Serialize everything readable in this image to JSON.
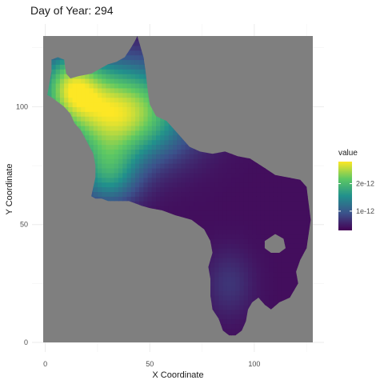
{
  "chart_data": {
    "type": "heatmap",
    "title": "Day of Year: 294",
    "xlabel": "X Coordinate",
    "ylabel": "Y Coordinate",
    "xlim": [
      -1,
      128
    ],
    "ylim": [
      0,
      130
    ],
    "x_ticks": [
      0,
      50,
      100
    ],
    "y_ticks": [
      0,
      50,
      100
    ],
    "background_color": "#7f7f7f",
    "na_region": "grey fill outside the land mask",
    "grid": true,
    "legend": {
      "title": "value",
      "position": "right",
      "tick_labels": [
        "1e-12",
        "2e-12"
      ],
      "tick_values": [
        1e-12,
        2e-12
      ],
      "min": 3e-13,
      "max": 2.8e-12,
      "palette": [
        "#440154",
        "#3b528b",
        "#21908c",
        "#5dc863",
        "#fde725"
      ]
    },
    "region_outline": [
      [
        3,
        120
      ],
      [
        6,
        121
      ],
      [
        9,
        120
      ],
      [
        10,
        114
      ],
      [
        12,
        112
      ],
      [
        16,
        113
      ],
      [
        22,
        114
      ],
      [
        26,
        116
      ],
      [
        30,
        118
      ],
      [
        34,
        119
      ],
      [
        38,
        121
      ],
      [
        41,
        125
      ],
      [
        43,
        128
      ],
      [
        44,
        130
      ],
      [
        45,
        127
      ],
      [
        47,
        121
      ],
      [
        48,
        115
      ],
      [
        49,
        107
      ],
      [
        50,
        101
      ],
      [
        53,
        96
      ],
      [
        58,
        94
      ],
      [
        63,
        89
      ],
      [
        69,
        83
      ],
      [
        74,
        81
      ],
      [
        80,
        80
      ],
      [
        86,
        81
      ],
      [
        92,
        79
      ],
      [
        98,
        78
      ],
      [
        105,
        74
      ],
      [
        110,
        71
      ],
      [
        116,
        70
      ],
      [
        122,
        69
      ],
      [
        125,
        66
      ],
      [
        126,
        59
      ],
      [
        127,
        52
      ],
      [
        126,
        46
      ],
      [
        125,
        40
      ],
      [
        122,
        35
      ],
      [
        120,
        30
      ],
      [
        121,
        25
      ],
      [
        117,
        19
      ],
      [
        112,
        17
      ],
      [
        108,
        14
      ],
      [
        105,
        16
      ],
      [
        102,
        19
      ],
      [
        99,
        17
      ],
      [
        97,
        14
      ],
      [
        96,
        9
      ],
      [
        94,
        5
      ],
      [
        91,
        3
      ],
      [
        88,
        3
      ],
      [
        85,
        5
      ],
      [
        83,
        10
      ],
      [
        80,
        14
      ],
      [
        79,
        20
      ],
      [
        79,
        27
      ],
      [
        78,
        32
      ],
      [
        80,
        38
      ],
      [
        79,
        43
      ],
      [
        76,
        48
      ],
      [
        70,
        52
      ],
      [
        62,
        54
      ],
      [
        56,
        56
      ],
      [
        50,
        57
      ],
      [
        46,
        58
      ],
      [
        40,
        60
      ],
      [
        34,
        60
      ],
      [
        30,
        60
      ],
      [
        27,
        61
      ],
      [
        24,
        61
      ],
      [
        22,
        62
      ],
      [
        23,
        66
      ],
      [
        24,
        70
      ],
      [
        24,
        75
      ],
      [
        23,
        80
      ],
      [
        20,
        85
      ],
      [
        17,
        90
      ],
      [
        14,
        93
      ],
      [
        12,
        97
      ],
      [
        9,
        100
      ],
      [
        6,
        102
      ],
      [
        3,
        104
      ],
      [
        1,
        105
      ],
      [
        2,
        110
      ],
      [
        3,
        115
      ],
      [
        3,
        120
      ]
    ],
    "holes": [
      [
        [
          105,
          43
        ],
        [
          110,
          46
        ],
        [
          114,
          44
        ],
        [
          115,
          40
        ],
        [
          112,
          38
        ],
        [
          108,
          38
        ],
        [
          105,
          40
        ],
        [
          105,
          43
        ]
      ]
    ],
    "value_field": {
      "description": "kernel-smoothed values in data units",
      "base": 4e-13,
      "components": [
        {
          "x": 35,
          "y": 98,
          "amplitude": 2.3e-12,
          "sigma_x": 22,
          "sigma_y": 14
        },
        {
          "x": 12,
          "y": 110,
          "amplitude": 1.4e-12,
          "sigma_x": 10,
          "sigma_y": 10
        },
        {
          "x": 30,
          "y": 72,
          "amplitude": 1.1e-12,
          "sigma_x": 10,
          "sigma_y": 10
        },
        {
          "x": 88,
          "y": 25,
          "amplitude": 3e-13,
          "sigma_x": 8,
          "sigma_y": 10
        }
      ]
    }
  }
}
